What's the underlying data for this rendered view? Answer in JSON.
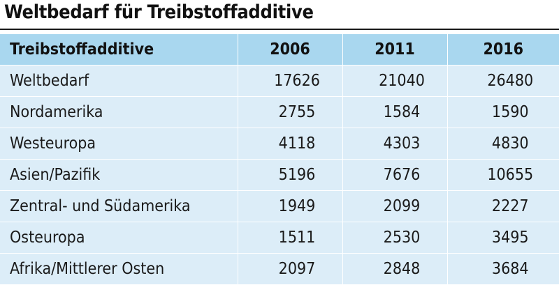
{
  "title": "Weltbedarf für Treibstoffadditive",
  "chart_data": {
    "type": "table",
    "title": "Weltbedarf für Treibstoffadditive",
    "columns": [
      "Treibstoffadditive",
      "2006",
      "2011",
      "2016"
    ],
    "rows": [
      {
        "label": "Weltbedarf",
        "values": [
          17626,
          21040,
          26480
        ]
      },
      {
        "label": "Nordamerika",
        "values": [
          2755,
          1584,
          1590
        ]
      },
      {
        "label": "Westeuropa",
        "values": [
          4118,
          4303,
          4830
        ]
      },
      {
        "label": "Asien/Pazifik",
        "values": [
          5196,
          7676,
          10655
        ]
      },
      {
        "label": "Zentral- und Südamerika",
        "values": [
          1949,
          2099,
          2227
        ]
      },
      {
        "label": "Osteuropa",
        "values": [
          1511,
          2530,
          3495
        ]
      },
      {
        "label": "Afrika/Mittlerer Osten",
        "values": [
          2097,
          2848,
          3684
        ]
      }
    ]
  },
  "colors": {
    "header_bg": "#a9d7ef",
    "row_bg": "#dcedf8",
    "separator": "#ffffff"
  }
}
